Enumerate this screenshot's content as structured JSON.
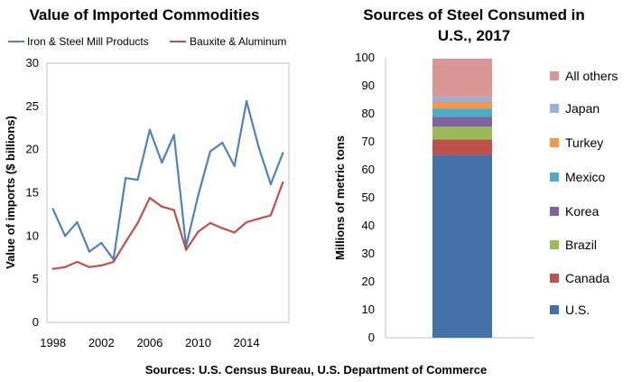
{
  "footer": {
    "source": "Sources: U.S. Census Bureau, U.S. Department of Commerce"
  },
  "colors": {
    "iron_steel": "#4f81bd",
    "bauxite": "#c0504d",
    "us": "#4472a8",
    "canada": "#c0504d",
    "brazil": "#9bbb59",
    "korea": "#8064a2",
    "mexico": "#4bacc6",
    "turkey": "#f79646",
    "japan": "#95b3d7",
    "all_others": "#d99694"
  },
  "chart_data": [
    {
      "type": "line",
      "title": "Value of Imported Commodities",
      "xlabel": "",
      "ylabel": "Value of imports ($ billions)",
      "xlim": [
        1997.5,
        2017.5
      ],
      "ylim": [
        0,
        30
      ],
      "xticks": [
        "1998",
        "2002",
        "2006",
        "2010",
        "2014"
      ],
      "yticks": [
        "0",
        "5",
        "10",
        "15",
        "20",
        "25",
        "30"
      ],
      "grid": false,
      "legend": "top",
      "x": [
        1998,
        1999,
        2000,
        2001,
        2002,
        2003,
        2004,
        2005,
        2006,
        2007,
        2008,
        2009,
        2010,
        2011,
        2012,
        2013,
        2014,
        2015,
        2016,
        2017
      ],
      "series": [
        {
          "name": "Iron & Steel Mill Products",
          "color": "#4f81bd",
          "values": [
            13.1,
            10.0,
            11.6,
            8.2,
            9.2,
            7.3,
            16.7,
            16.5,
            22.3,
            18.5,
            21.7,
            8.8,
            14.7,
            19.8,
            20.8,
            18.1,
            25.6,
            20.3,
            16.0,
            19.6
          ]
        },
        {
          "name": "Bauxite & Aluminum",
          "color": "#c0504d",
          "values": [
            6.2,
            6.4,
            7.0,
            6.4,
            6.6,
            7.0,
            9.3,
            11.5,
            14.4,
            13.4,
            13.0,
            8.4,
            10.5,
            11.5,
            10.9,
            10.4,
            11.6,
            12.0,
            12.4,
            16.2
          ]
        }
      ]
    },
    {
      "type": "bar",
      "stacked": true,
      "title_lines": [
        "Sources of Steel Consumed in",
        "U.S., 2017"
      ],
      "xlabel": "",
      "ylabel": "Millions of metric tons",
      "ylim": [
        0,
        100
      ],
      "yticks": [
        "0",
        "10",
        "20",
        "30",
        "40",
        "50",
        "60",
        "70",
        "80",
        "90",
        "100"
      ],
      "grid": false,
      "legend": "right",
      "categories": [
        ""
      ],
      "series": [
        {
          "name": "U.S.",
          "color": "#4472a8",
          "values": [
            65.3
          ]
        },
        {
          "name": "Canada",
          "color": "#c0504d",
          "values": [
            5.5
          ]
        },
        {
          "name": "Brazil",
          "color": "#9bbb59",
          "values": [
            4.6
          ]
        },
        {
          "name": "Korea",
          "color": "#8064a2",
          "values": [
            3.5
          ]
        },
        {
          "name": "Mexico",
          "color": "#4bacc6",
          "values": [
            3.0
          ]
        },
        {
          "name": "Turkey",
          "color": "#f79646",
          "values": [
            2.3
          ]
        },
        {
          "name": "Japan",
          "color": "#95b3d7",
          "values": [
            1.8
          ]
        },
        {
          "name": "All others",
          "color": "#d99694",
          "values": [
            13.7
          ]
        }
      ]
    }
  ]
}
